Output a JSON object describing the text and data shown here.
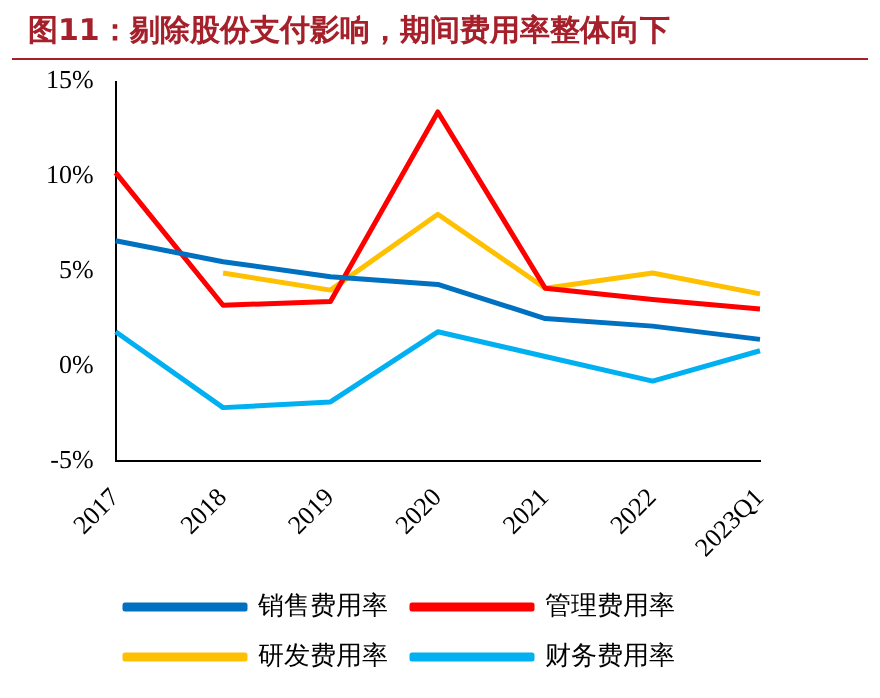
{
  "chart_data": {
    "type": "line",
    "title": "图11：剔除股份支付影响，期间费用率整体向下",
    "categories": [
      "2017",
      "2018",
      "2019",
      "2020",
      "2021",
      "2022",
      "2023Q1"
    ],
    "series": [
      {
        "name": "销售费用率",
        "color": "#0070c0",
        "values": [
          6.6,
          5.5,
          4.7,
          4.3,
          2.5,
          2.1,
          1.4
        ]
      },
      {
        "name": "管理费用率",
        "color": "#ff0000",
        "values": [
          10.2,
          3.2,
          3.4,
          13.4,
          4.1,
          3.5,
          3.0
        ]
      },
      {
        "name": "研发费用率",
        "color": "#ffc000",
        "values": [
          null,
          4.9,
          4.0,
          8.0,
          4.1,
          4.9,
          3.8
        ]
      },
      {
        "name": "财务费用率",
        "color": "#00b0f0",
        "values": [
          1.8,
          -2.2,
          -1.9,
          1.8,
          0.5,
          -0.8,
          0.8
        ]
      }
    ],
    "ylim": [
      -5,
      15
    ],
    "yticks": [
      {
        "value": -5,
        "label": "-5%"
      },
      {
        "value": 0,
        "label": "0%"
      },
      {
        "value": 5,
        "label": "5%"
      },
      {
        "value": 10,
        "label": "10%"
      },
      {
        "value": 15,
        "label": "15%"
      }
    ],
    "grid": false,
    "legend": "bottom",
    "marker": "none",
    "line_style": "solid"
  }
}
